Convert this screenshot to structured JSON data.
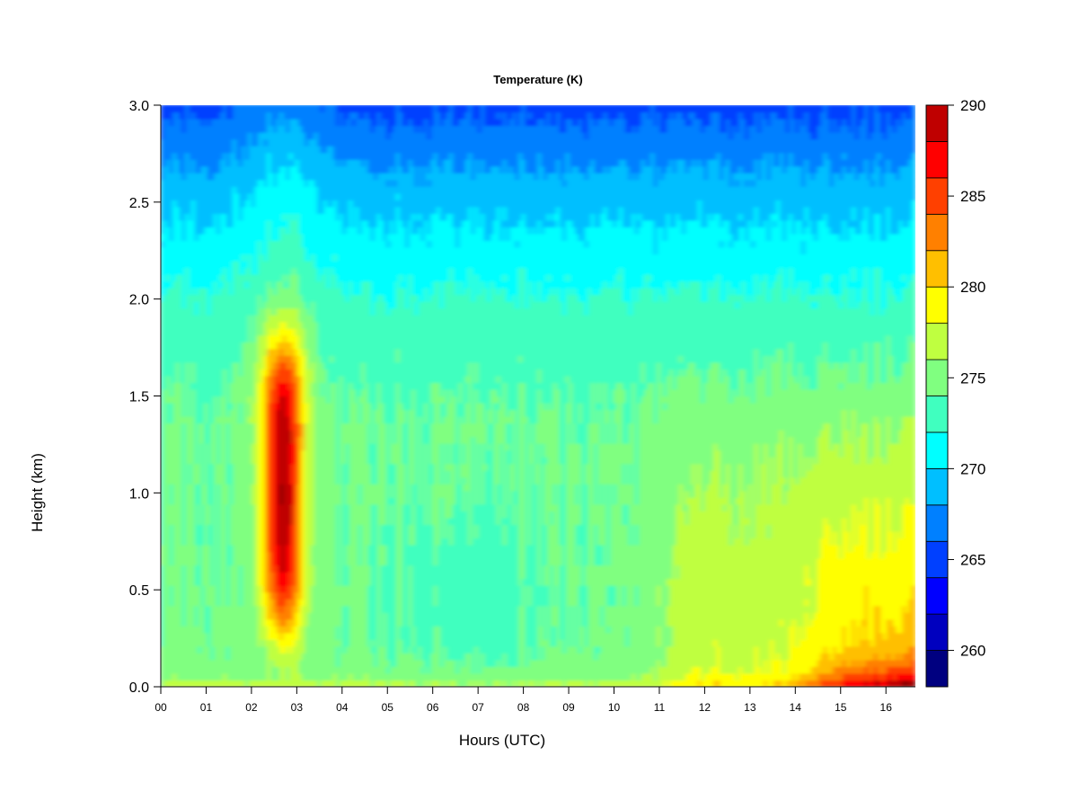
{
  "chart_data": {
    "type": "heatmap",
    "title": "Temperature (K)",
    "xlabel": "Hours (UTC)",
    "ylabel": "Height (km)",
    "xlim": [
      0,
      16.65
    ],
    "ylim": [
      0,
      3.0
    ],
    "x_ticks": [
      0,
      1,
      2,
      3,
      4,
      5,
      6,
      7,
      8,
      9,
      10,
      11,
      12,
      13,
      14,
      15,
      16
    ],
    "x_tick_labels": [
      "00",
      "01",
      "02",
      "03",
      "04",
      "05",
      "06",
      "07",
      "08",
      "09",
      "10",
      "11",
      "12",
      "13",
      "14",
      "15",
      "16"
    ],
    "y_ticks": [
      0.0,
      0.5,
      1.0,
      1.5,
      2.0,
      2.5,
      3.0
    ],
    "y_tick_labels": [
      "0.0",
      "0.5",
      "1.0",
      "1.5",
      "2.0",
      "2.5",
      "3.0"
    ],
    "colorbar": {
      "range": [
        258,
        290
      ],
      "levels": [
        258,
        260,
        262,
        264,
        266,
        268,
        270,
        272,
        274,
        276,
        278,
        280,
        282,
        284,
        286,
        288,
        290
      ],
      "tick_values": [
        260,
        265,
        270,
        275,
        280,
        285,
        290
      ],
      "tick_labels": [
        "260",
        "265",
        "270",
        "275",
        "280",
        "285",
        "290"
      ],
      "colors": [
        "#000080",
        "#0000BF",
        "#0000FF",
        "#0040FF",
        "#0080FF",
        "#00BFFF",
        "#00FFFF",
        "#40FFBF",
        "#80FF80",
        "#BFFF40",
        "#FFFF00",
        "#FFBF00",
        "#FF8000",
        "#FF4000",
        "#FF0000",
        "#BF0000",
        "#800000"
      ]
    },
    "grid": false,
    "features": [
      {
        "description": "warm plume",
        "x_center_hours": 2.7,
        "height_range_km": [
          0.5,
          1.5
        ],
        "peak_temperature_K": 286
      },
      {
        "description": "warm surface layer",
        "x_range_hours": [
          14.5,
          16.65
        ],
        "height_range_km": [
          0.0,
          0.2
        ],
        "peak_temperature_K": 287
      }
    ]
  }
}
